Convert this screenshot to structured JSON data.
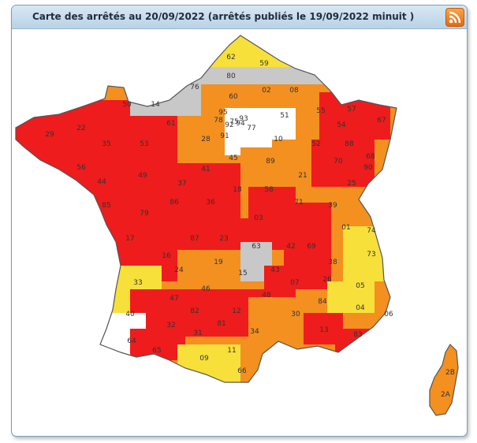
{
  "panel": {
    "title": "Carte des arrêtés au 20/09/2022 (arrêtés publiés le 19/09/2022 minuit )",
    "rss_icon": "rss-feed-icon"
  },
  "colors": {
    "crisis": "#ee1c1c",
    "reinforced_alert": "#f39020",
    "alert": "#f8e03a",
    "vigilance": "#c8c8c8",
    "none": "#ffffff",
    "border": "#555555"
  },
  "departments": [
    "62",
    "59",
    "80",
    "76",
    "02",
    "08",
    "60",
    "14",
    "50",
    "55",
    "57",
    "67",
    "51",
    "54",
    "61",
    "78",
    "77",
    "29",
    "22",
    "35",
    "53",
    "28",
    "10",
    "52",
    "88",
    "68",
    "56",
    "45",
    "89",
    "21",
    "25",
    "44",
    "49",
    "37",
    "41",
    "18",
    "70",
    "90",
    "58",
    "71",
    "39",
    "85",
    "79",
    "86",
    "36",
    "03",
    "01",
    "74",
    "17",
    "87",
    "23",
    "63",
    "42",
    "73",
    "33",
    "24",
    "19",
    "43",
    "69",
    "38",
    "46",
    "15",
    "48",
    "07",
    "26",
    "05",
    "04",
    "06",
    "40",
    "47",
    "82",
    "12",
    "30",
    "84",
    "13",
    "83",
    "64",
    "32",
    "31",
    "81",
    "34",
    "11",
    "65",
    "09",
    "66",
    "2B",
    "2A",
    "16",
    "91",
    "95",
    "93",
    "94",
    "75",
    "92"
  ]
}
